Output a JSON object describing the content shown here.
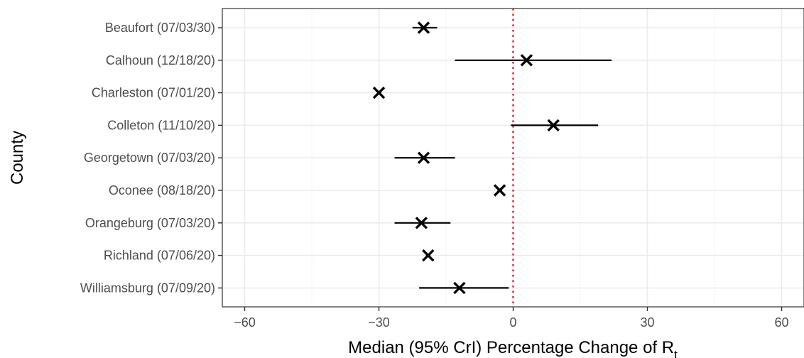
{
  "chart_data": {
    "type": "forest",
    "xlabel": "Median (95% CrI) Percentage Change of R",
    "xlabel_subscript": "t",
    "ylabel": "County",
    "xlim": [
      -65,
      65
    ],
    "xticks": [
      -60,
      -30,
      0,
      30,
      60
    ],
    "xtick_labels": [
      "−60",
      "−30",
      "0",
      "30",
      "60"
    ],
    "reference_line": 0,
    "reference_color": "#e41a1c",
    "grid": true,
    "categories": [
      "Beaufort (07/03/30)",
      "Calhoun (12/18/20)",
      "Charleston (07/01/20)",
      "Colleton (11/10/20)",
      "Georgetown (07/03/20)",
      "Oconee (08/18/20)",
      "Orangeburg (07/03/20)",
      "Richland (07/06/20)",
      "Williamsburg (07/09/20)"
    ],
    "median": [
      -20,
      3,
      -30,
      9,
      -20,
      -3,
      -20.5,
      -19,
      -12
    ],
    "lower": [
      -22.5,
      -13,
      -30,
      -0.5,
      -26.5,
      -3.5,
      -26.5,
      -19.5,
      -21
    ],
    "upper": [
      -17,
      22,
      -29.5,
      19,
      -13,
      -2.5,
      -14,
      -18.5,
      -1
    ]
  }
}
